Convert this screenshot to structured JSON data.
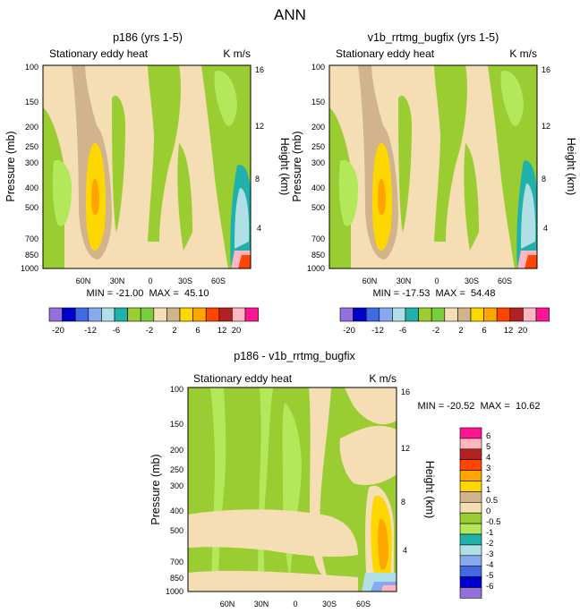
{
  "figure_title": "ANN",
  "chart_data": [
    {
      "type": "contour",
      "title": "p186 (yrs 1-5)",
      "subtitle_left": "Stationary eddy heat",
      "subtitle_right": "K m/s",
      "ylabel": "Pressure (mb)",
      "ylabel_right": "Height (km)",
      "y_ticks": [
        "100",
        "150",
        "200",
        "250",
        "300",
        "400",
        "500",
        "700",
        "850",
        "1000"
      ],
      "y_right_ticks": [
        "16",
        "12",
        "8",
        "4"
      ],
      "x_ticks": [
        "60N",
        "30N",
        "0",
        "30S",
        "60S"
      ],
      "min": "-21.00",
      "max": "45.10",
      "stats_label": "MIN = -21.00  MAX =  45.10",
      "colorbar_labels": [
        "-20",
        "-12",
        "-6",
        "-2",
        "2",
        "6",
        "12",
        "20"
      ]
    },
    {
      "type": "contour",
      "title": "v1b_rrtmg_bugfix (yrs 1-5)",
      "subtitle_left": "Stationary eddy heat",
      "subtitle_right": "K m/s",
      "ylabel": "Pressure (mb)",
      "ylabel_right": "Height (km)",
      "y_ticks": [
        "100",
        "150",
        "200",
        "250",
        "300",
        "400",
        "500",
        "700",
        "850",
        "1000"
      ],
      "y_right_ticks": [
        "16",
        "12",
        "8",
        "4"
      ],
      "x_ticks": [
        "60N",
        "30N",
        "0",
        "30S",
        "60S"
      ],
      "min": "-17.53",
      "max": "54.48",
      "stats_label": "MIN = -17.53  MAX =  54.48",
      "colorbar_labels": [
        "-20",
        "-12",
        "-6",
        "-2",
        "2",
        "6",
        "12",
        "20"
      ]
    },
    {
      "type": "contour",
      "title": "p186 - v1b_rrtmg_bugfix",
      "subtitle_left": "Stationary eddy heat",
      "subtitle_right": "K m/s",
      "ylabel": "Pressure (mb)",
      "ylabel_right": "Height (km)",
      "y_ticks": [
        "100",
        "150",
        "200",
        "250",
        "300",
        "400",
        "500",
        "700",
        "850",
        "1000"
      ],
      "y_right_ticks": [
        "16",
        "12",
        "8",
        "4"
      ],
      "x_ticks": [
        "60N",
        "30N",
        "0",
        "30S",
        "60S"
      ],
      "min": "-20.52",
      "max": "10.62",
      "stats_label": "MIN = -20.52  MAX =  10.62",
      "colorbar_labels": [
        "6",
        "5",
        "4",
        "3",
        "2",
        "1",
        "0.5",
        "0",
        "-0.5",
        "-1",
        "-2",
        "-3",
        "-4",
        "-5",
        "-6"
      ]
    }
  ],
  "colors": {
    "top_colorbar": [
      "#9370DB",
      "#0000CD",
      "#4169E1",
      "#87A9F0",
      "#B0E0E6",
      "#20B2AA",
      "#9ACD32",
      "#7CCD3C",
      "#F5DEB3",
      "#D2B48C",
      "#FFD700",
      "#FFA500",
      "#FF4500",
      "#B22222",
      "#FFB6C1",
      "#FF1493"
    ],
    "diff_colorbar": [
      "#FF1493",
      "#FFB6C1",
      "#B22222",
      "#FF4500",
      "#FFA500",
      "#FFD700",
      "#D2B48C",
      "#F5DEB3",
      "#9ACD32",
      "#B2E85A",
      "#20B2AA",
      "#B0E0E6",
      "#87A9F0",
      "#4169E1",
      "#0000CD",
      "#9370DB"
    ],
    "tan_light": "#F5DEB3",
    "tan_dark": "#D2B48C",
    "green_dark": "#9ACD32",
    "green_light": "#B2E85A",
    "yellow": "#FFD700",
    "orange": "#FFA500",
    "teal": "#20B2AA",
    "lightblue": "#B0E0E6"
  }
}
